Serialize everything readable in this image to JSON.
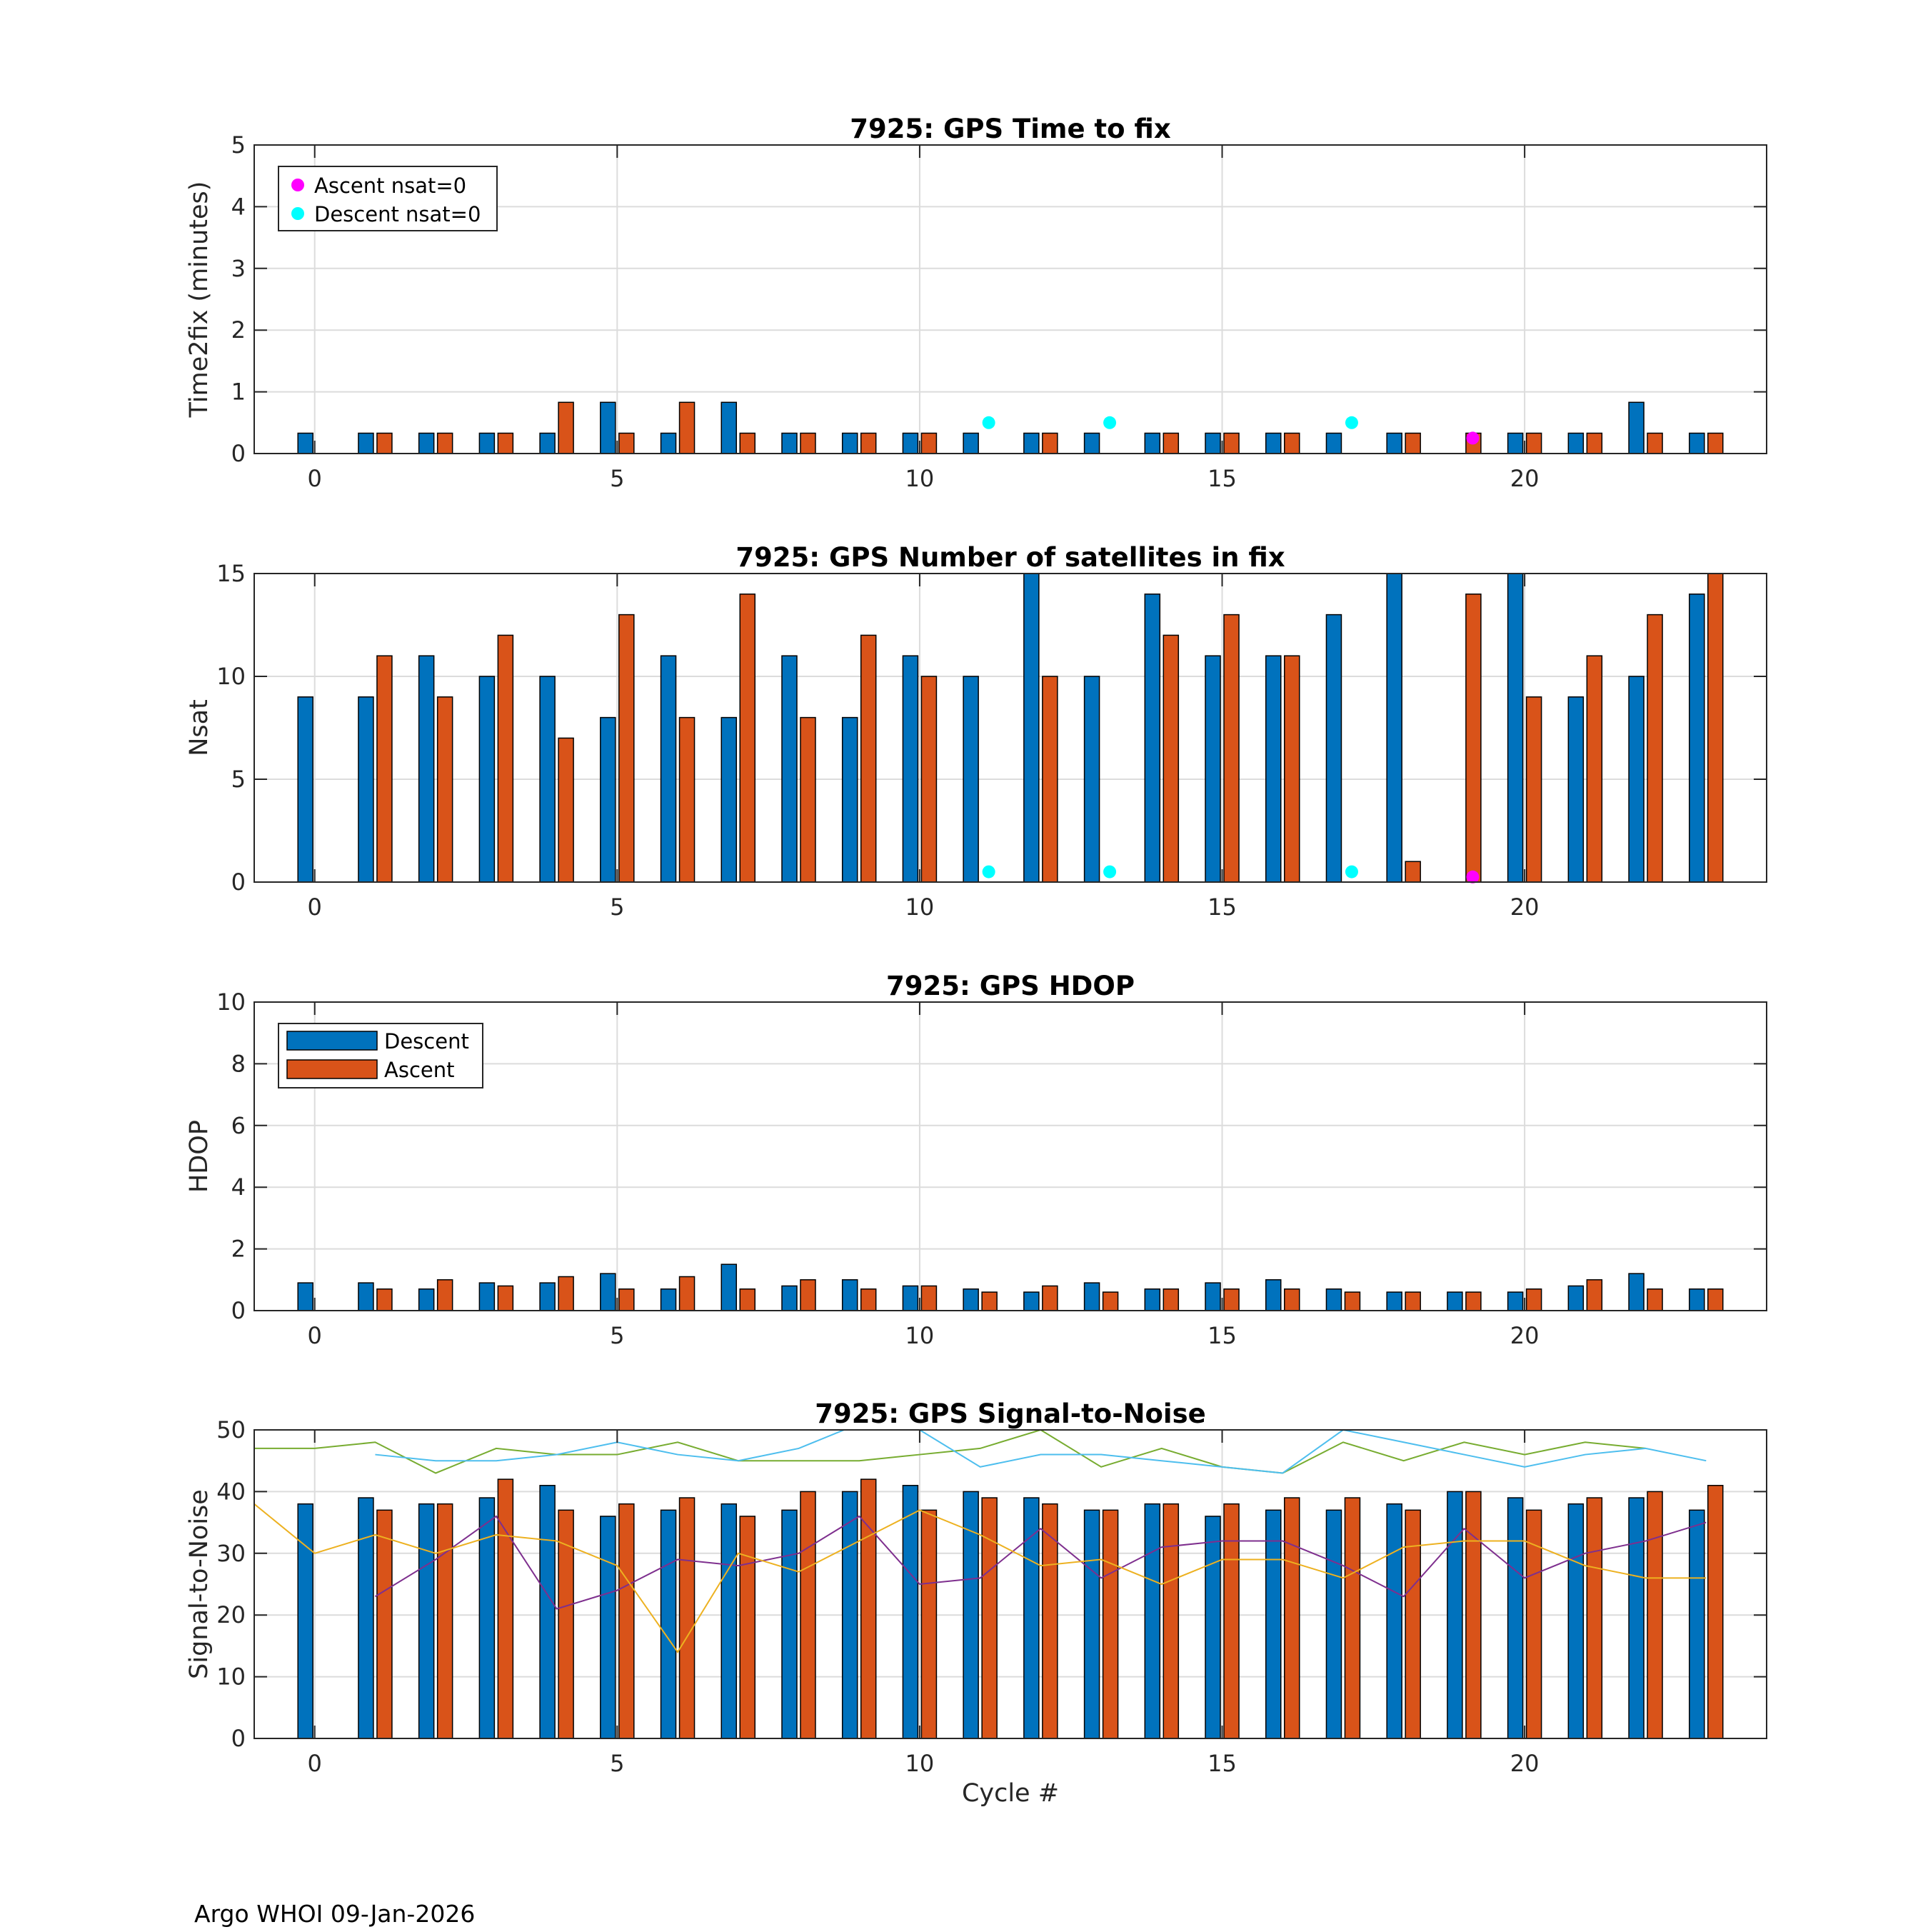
{
  "footer": "Argo WHOI 09-Jan-2026",
  "colors": {
    "descent": "#0072BD",
    "ascent": "#D95319",
    "ascent_nsat0": "#FF00FF",
    "descent_nsat0": "#00FFFF",
    "snr_green": "#77AC30",
    "snr_cyan": "#4DBEEE",
    "snr_purple": "#7E2F8E",
    "snr_yellow": "#EDB120"
  },
  "chart_data": [
    {
      "type": "bar",
      "title": "7925: GPS Time to fix",
      "xlabel": "",
      "ylabel": "Time2fix (minutes)",
      "xlim": [
        -1,
        24
      ],
      "ylim": [
        0,
        5
      ],
      "xticks": [
        0,
        5,
        10,
        15,
        20
      ],
      "yticks": [
        0,
        1,
        2,
        3,
        4,
        5
      ],
      "grid": true,
      "legend_position": "top-left",
      "legend": [
        "Ascent nsat=0",
        "Descent nsat=0"
      ],
      "x": [
        0,
        1,
        2,
        3,
        4,
        5,
        6,
        7,
        8,
        9,
        10,
        11,
        12,
        13,
        14,
        15,
        16,
        17,
        18,
        19,
        20,
        21,
        22,
        23
      ],
      "series": [
        {
          "name": "Descent",
          "values": [
            0.33,
            0.33,
            0.33,
            0.33,
            0.33,
            0.83,
            0.33,
            0.83,
            0.33,
            0.33,
            0.33,
            0.33,
            0.33,
            0.33,
            0.33,
            0.33,
            0.33,
            0.33,
            0.33,
            null,
            0.33,
            0.33,
            0.83,
            0.33
          ]
        },
        {
          "name": "Ascent",
          "values": [
            null,
            0.33,
            0.33,
            0.33,
            0.83,
            0.33,
            0.83,
            0.33,
            0.33,
            0.33,
            0.33,
            null,
            0.33,
            null,
            0.33,
            0.33,
            0.33,
            null,
            0.33,
            0.33,
            0.33,
            0.33,
            0.33,
            0.33
          ]
        }
      ],
      "markers": [
        {
          "name": "Descent nsat=0",
          "x": [
            11,
            13,
            17
          ],
          "y": [
            0.5,
            0.5,
            0.5
          ]
        },
        {
          "name": "Ascent nsat=0",
          "x": [
            19
          ],
          "y": [
            0.25
          ]
        }
      ]
    },
    {
      "type": "bar",
      "title": "7925: GPS Number of satellites in fix",
      "xlabel": "",
      "ylabel": "Nsat",
      "xlim": [
        -1,
        24
      ],
      "ylim": [
        0,
        15
      ],
      "xticks": [
        0,
        5,
        10,
        15,
        20
      ],
      "yticks": [
        0,
        5,
        10,
        15
      ],
      "grid": true,
      "x": [
        0,
        1,
        2,
        3,
        4,
        5,
        6,
        7,
        8,
        9,
        10,
        11,
        12,
        13,
        14,
        15,
        16,
        17,
        18,
        19,
        20,
        21,
        22,
        23
      ],
      "series": [
        {
          "name": "Descent",
          "values": [
            9,
            9,
            11,
            10,
            10,
            8,
            11,
            8,
            11,
            8,
            11,
            10,
            15,
            10,
            14,
            11,
            11,
            13,
            15,
            null,
            15,
            9,
            10,
            14
          ]
        },
        {
          "name": "Ascent",
          "values": [
            null,
            11,
            9,
            12,
            7,
            13,
            8,
            14,
            8,
            12,
            10,
            null,
            10,
            null,
            12,
            13,
            11,
            null,
            1,
            14,
            9,
            11,
            13,
            15
          ]
        }
      ],
      "markers": [
        {
          "name": "Descent nsat=0",
          "x": [
            11,
            13,
            17
          ],
          "y": [
            0.5,
            0.5,
            0.5
          ]
        },
        {
          "name": "Ascent nsat=0",
          "x": [
            19
          ],
          "y": [
            0.25
          ]
        }
      ]
    },
    {
      "type": "bar",
      "title": "7925: GPS HDOP",
      "xlabel": "",
      "ylabel": "HDOP",
      "xlim": [
        -1,
        24
      ],
      "ylim": [
        0,
        10
      ],
      "xticks": [
        0,
        5,
        10,
        15,
        20
      ],
      "yticks": [
        0,
        2,
        4,
        6,
        8,
        10
      ],
      "grid": true,
      "legend_position": "top-left",
      "legend": [
        "Descent",
        "Ascent"
      ],
      "x": [
        0,
        1,
        2,
        3,
        4,
        5,
        6,
        7,
        8,
        9,
        10,
        11,
        12,
        13,
        14,
        15,
        16,
        17,
        18,
        19,
        20,
        21,
        22,
        23
      ],
      "series": [
        {
          "name": "Descent",
          "values": [
            0.9,
            0.9,
            0.7,
            0.9,
            0.9,
            1.2,
            0.7,
            1.5,
            0.8,
            1.0,
            0.8,
            0.7,
            0.6,
            0.9,
            0.7,
            0.9,
            1.0,
            0.7,
            0.6,
            0.6,
            0.6,
            0.8,
            1.2,
            0.7
          ]
        },
        {
          "name": "Ascent",
          "values": [
            null,
            0.7,
            1.0,
            0.8,
            1.1,
            0.7,
            1.1,
            0.7,
            1.0,
            0.7,
            0.8,
            0.6,
            0.8,
            0.6,
            0.7,
            0.7,
            0.7,
            0.6,
            0.6,
            0.6,
            0.7,
            1.0,
            0.7,
            0.7
          ]
        }
      ]
    },
    {
      "type": "bar",
      "title": "7925: GPS Signal-to-Noise",
      "xlabel": "Cycle #",
      "ylabel": "Signal-to-Noise",
      "xlim": [
        -1,
        24
      ],
      "ylim": [
        0,
        50
      ],
      "xticks": [
        0,
        5,
        10,
        15,
        20
      ],
      "yticks": [
        0,
        10,
        20,
        30,
        40,
        50
      ],
      "grid": true,
      "x": [
        0,
        1,
        2,
        3,
        4,
        5,
        6,
        7,
        8,
        9,
        10,
        11,
        12,
        13,
        14,
        15,
        16,
        17,
        18,
        19,
        20,
        21,
        22,
        23
      ],
      "series": [
        {
          "name": "Descent",
          "values": [
            38,
            39,
            38,
            39,
            41,
            36,
            37,
            38,
            37,
            40,
            41,
            40,
            39,
            37,
            38,
            36,
            37,
            37,
            38,
            40,
            39,
            38,
            39,
            37
          ]
        },
        {
          "name": "Ascent",
          "values": [
            null,
            37,
            38,
            42,
            37,
            38,
            39,
            36,
            40,
            42,
            37,
            39,
            38,
            37,
            38,
            38,
            39,
            39,
            37,
            40,
            37,
            39,
            40,
            41
          ]
        }
      ],
      "lines": [
        {
          "name": "green",
          "x": [
            -1,
            0,
            1,
            2,
            3,
            4,
            5,
            6,
            7,
            8,
            9,
            10,
            11,
            12,
            13,
            14,
            15,
            16,
            17,
            18,
            19,
            20,
            21,
            22
          ],
          "values": [
            47,
            47,
            48,
            43,
            47,
            46,
            46,
            48,
            45,
            45,
            45,
            46,
            47,
            50,
            44,
            47,
            44,
            43,
            48,
            45,
            48,
            46,
            48,
            47
          ]
        },
        {
          "name": "cyan",
          "x": [
            1,
            2,
            3,
            4,
            5,
            6,
            7,
            8,
            9,
            10,
            11,
            12,
            13,
            14,
            15,
            16,
            17,
            18,
            19,
            20,
            21,
            22,
            23
          ],
          "values": [
            46,
            45,
            45,
            46,
            48,
            46,
            45,
            47,
            51,
            50,
            44,
            46,
            46,
            45,
            44,
            43,
            50,
            48,
            46,
            44,
            46,
            47,
            45
          ]
        },
        {
          "name": "purple",
          "x": [
            1,
            2,
            3,
            4,
            5,
            6,
            7,
            8,
            9,
            10,
            11,
            12,
            13,
            14,
            15,
            16,
            17,
            18,
            19,
            20,
            21,
            22,
            23
          ],
          "values": [
            23,
            29,
            36,
            21,
            24,
            29,
            28,
            30,
            36,
            25,
            26,
            34,
            26,
            31,
            32,
            32,
            28,
            23,
            34,
            26,
            30,
            32,
            35
          ]
        },
        {
          "name": "yellow",
          "x": [
            -1,
            0,
            1,
            2,
            3,
            4,
            5,
            6,
            7,
            8,
            9,
            10,
            11,
            12,
            13,
            14,
            15,
            16,
            17,
            18,
            19,
            20,
            21,
            22,
            23
          ],
          "values": [
            38,
            30,
            33,
            30,
            33,
            32,
            28,
            14,
            30,
            27,
            32,
            37,
            33,
            28,
            29,
            25,
            29,
            29,
            26,
            31,
            32,
            32,
            28,
            26,
            26
          ]
        }
      ]
    }
  ]
}
